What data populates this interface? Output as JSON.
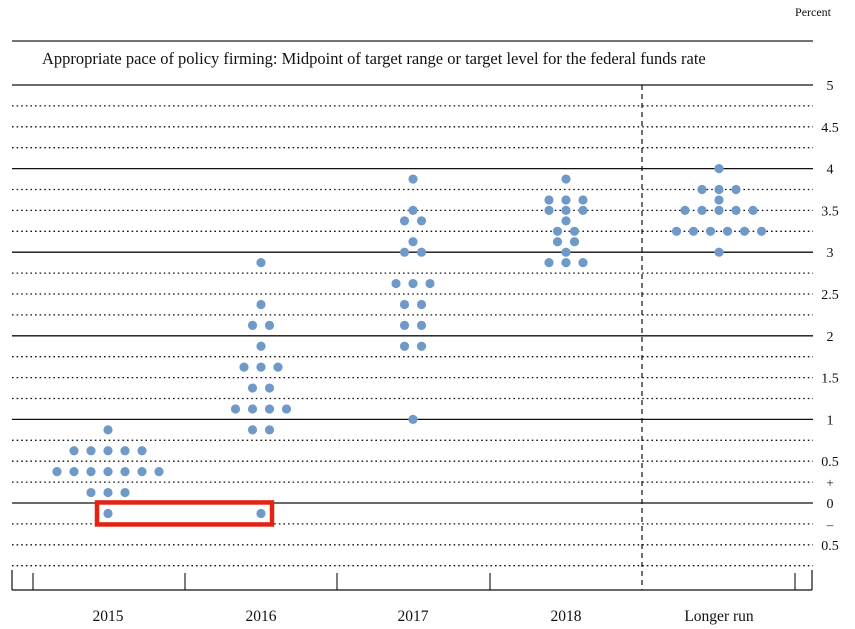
{
  "chart_data": {
    "type": "scatter",
    "title": "Appropriate pace of policy firming: Midpoint of target range or target level for the federal funds rate",
    "unit_label": "Percent",
    "categories": [
      "2015",
      "2016",
      "2017",
      "2018",
      "Longer run"
    ],
    "ylim": [
      -0.5,
      5
    ],
    "y_ticks": [
      {
        "value": 5,
        "label": "5"
      },
      {
        "value": 4.5,
        "label": "4.5"
      },
      {
        "value": 4,
        "label": "4"
      },
      {
        "value": 3.5,
        "label": "3.5"
      },
      {
        "value": 3,
        "label": "3"
      },
      {
        "value": 2.5,
        "label": "2.5"
      },
      {
        "value": 2,
        "label": "2"
      },
      {
        "value": 1.5,
        "label": "1.5"
      },
      {
        "value": 1,
        "label": "1"
      },
      {
        "value": 0.5,
        "label": "0.5"
      },
      {
        "value": 0,
        "label": "0"
      },
      {
        "value": -0.5,
        "label": "0.5"
      }
    ],
    "sign_labels": {
      "plus": "+",
      "minus": "–"
    },
    "dots": [
      {
        "category": "2015",
        "values": [
          {
            "y": 0.875,
            "count": 1
          },
          {
            "y": 0.625,
            "count": 5
          },
          {
            "y": 0.375,
            "count": 7
          },
          {
            "y": 0.125,
            "count": 3
          },
          {
            "y": -0.125,
            "count": 1
          }
        ]
      },
      {
        "category": "2016",
        "values": [
          {
            "y": 2.875,
            "count": 1
          },
          {
            "y": 2.375,
            "count": 1
          },
          {
            "y": 2.125,
            "count": 2
          },
          {
            "y": 1.875,
            "count": 1
          },
          {
            "y": 1.625,
            "count": 3
          },
          {
            "y": 1.375,
            "count": 2
          },
          {
            "y": 1.125,
            "count": 4
          },
          {
            "y": 0.875,
            "count": 2
          },
          {
            "y": -0.125,
            "count": 1
          }
        ]
      },
      {
        "category": "2017",
        "values": [
          {
            "y": 3.875,
            "count": 1
          },
          {
            "y": 3.5,
            "count": 1
          },
          {
            "y": 3.375,
            "count": 2
          },
          {
            "y": 3.125,
            "count": 1
          },
          {
            "y": 3.0,
            "count": 2
          },
          {
            "y": 2.625,
            "count": 3
          },
          {
            "y": 2.375,
            "count": 2
          },
          {
            "y": 2.125,
            "count": 2
          },
          {
            "y": 1.875,
            "count": 2
          },
          {
            "y": 1.0,
            "count": 1
          }
        ]
      },
      {
        "category": "2018",
        "values": [
          {
            "y": 3.875,
            "count": 1
          },
          {
            "y": 3.625,
            "count": 3
          },
          {
            "y": 3.5,
            "count": 3
          },
          {
            "y": 3.375,
            "count": 1
          },
          {
            "y": 3.25,
            "count": 2
          },
          {
            "y": 3.125,
            "count": 2
          },
          {
            "y": 3.0,
            "count": 1
          },
          {
            "y": 2.875,
            "count": 3
          }
        ]
      },
      {
        "category": "Longer run",
        "values": [
          {
            "y": 4.0,
            "count": 1
          },
          {
            "y": 3.75,
            "count": 3
          },
          {
            "y": 3.625,
            "count": 1
          },
          {
            "y": 3.5,
            "count": 5
          },
          {
            "y": 3.25,
            "count": 6
          },
          {
            "y": 3.0,
            "count": 1
          }
        ]
      }
    ],
    "highlight": {
      "categories": [
        "2015",
        "2016"
      ],
      "y": -0.125,
      "color": "#e32212"
    },
    "dot_color": "#6f9ac8",
    "grid": true
  }
}
